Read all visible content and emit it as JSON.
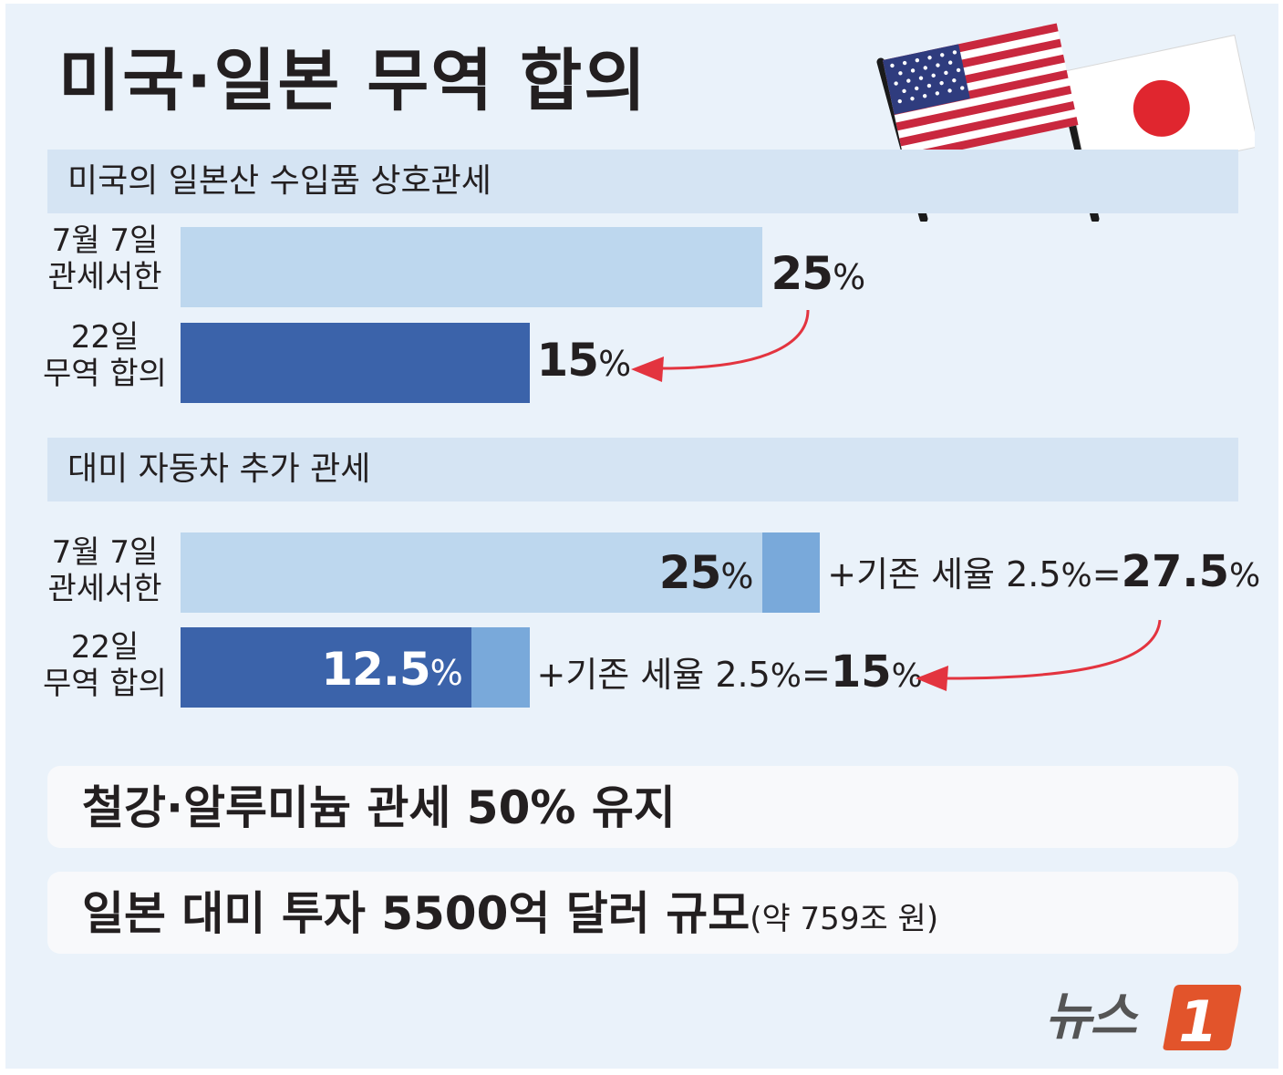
{
  "title": "미국·일본 무역 합의",
  "section1": {
    "label": "미국의 일본산 수입품 상호관세",
    "rows": [
      {
        "label_line1": "7월 7일",
        "label_line2": "관세서한",
        "value_num": "25",
        "value_unit": "%"
      },
      {
        "label_line1": "22일",
        "label_line2": "무역 합의",
        "value_num": "15",
        "value_unit": "%"
      }
    ]
  },
  "section2": {
    "label": "대미 자동차 추가 관세",
    "rows": [
      {
        "label_line1": "7월 7일",
        "label_line2": "관세서한",
        "value_num": "25",
        "value_unit": "%",
        "formula_prefix": "+기존 세율 ",
        "formula_base": "2.5",
        "formula_base_unit": "%",
        "formula_eq": "=",
        "formula_total": "27.5",
        "formula_total_unit": "%"
      },
      {
        "label_line1": "22일",
        "label_line2": "무역 합의",
        "value_num": "12.5",
        "value_unit": "%",
        "formula_prefix": "+기존 세율 ",
        "formula_base": "2.5",
        "formula_base_unit": "%",
        "formula_eq": "=",
        "formula_total": "15",
        "formula_total_unit": "%"
      }
    ]
  },
  "notes": {
    "steel": "철강·알루미늄 관세 50% 유지",
    "investment": "일본 대미 투자 5500억 달러 규모",
    "investment_sub": "(약 759조 원)"
  },
  "logo": {
    "text": "뉴스",
    "mark": "1"
  },
  "colors": {
    "background": "#eaf2fa",
    "band": "#d5e4f3",
    "bar_light": "#bdd7ee",
    "bar_dark": "#3b63aa",
    "bar_mid": "#79a9da",
    "arrow": "#e3343f",
    "logo_orange": "#e2542b"
  },
  "chart_data": [
    {
      "type": "bar",
      "orientation": "horizontal",
      "title": "미국의 일본산 수입품 상호관세",
      "categories": [
        "7월 7일 관세서한",
        "22일 무역 합의"
      ],
      "values": [
        25,
        15
      ],
      "unit": "%"
    },
    {
      "type": "bar",
      "orientation": "horizontal",
      "stacked": true,
      "title": "대미 자동차 추가 관세",
      "categories": [
        "7월 7일 관세서한",
        "22일 무역 합의"
      ],
      "series": [
        {
          "values": [
            25,
            12.5
          ]
        },
        {
          "values": [
            2.5,
            2.5
          ]
        }
      ],
      "totals": [
        27.5,
        15
      ],
      "unit": "%"
    }
  ]
}
